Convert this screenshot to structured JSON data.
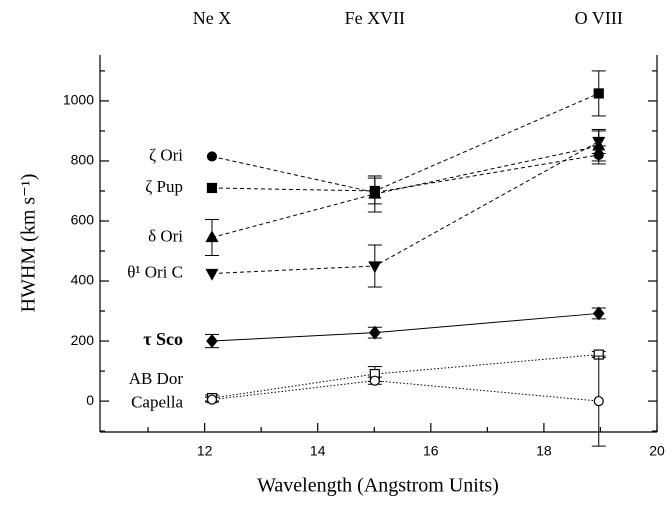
{
  "chart_data": {
    "type": "line",
    "xlabel": "Wavelength (Angstrom Units)",
    "ylabel": "HWHM (km s⁻¹)",
    "top_labels": [
      {
        "text": "Ne X",
        "x": 12.13
      },
      {
        "text": "Fe XVII",
        "x": 15.01
      },
      {
        "text": "O VIII",
        "x": 18.97
      }
    ],
    "x": [
      12.13,
      15.01,
      18.97
    ],
    "xlim": [
      10.15,
      20
    ],
    "xticks": [
      12,
      14,
      16,
      18,
      20
    ],
    "xminorticks": [
      11,
      13,
      15,
      17,
      19
    ],
    "ylim": [
      -103,
      1153
    ],
    "yticks": [
      0,
      200,
      400,
      600,
      800,
      1000
    ],
    "yminorticks": [
      -100,
      100,
      300,
      500,
      700,
      900,
      1100
    ],
    "grid": false,
    "series": [
      {
        "name": "ζ Ori",
        "color": "#000",
        "marker": "circle",
        "filled": true,
        "linestyle": "dashed",
        "values": [
          815,
          695,
          820
        ],
        "errors": [
          null,
          null,
          30
        ]
      },
      {
        "name": "ζ Pup",
        "color": "#000",
        "marker": "square",
        "filled": true,
        "linestyle": "dashed",
        "values": [
          710,
          700,
          1025
        ],
        "errors": [
          null,
          43,
          75
        ]
      },
      {
        "name": "δ Ori",
        "color": "#000",
        "marker": "triangle-up",
        "filled": true,
        "linestyle": "dashed",
        "values": [
          545,
          690,
          850
        ],
        "errors": [
          60,
          60,
          50
        ]
      },
      {
        "name": "θ¹ Ori C",
        "color": "#000",
        "marker": "triangle-down",
        "filled": true,
        "linestyle": "dashed",
        "values": [
          425,
          450,
          865
        ],
        "errors": [
          null,
          70,
          40
        ]
      },
      {
        "name": "τ Sco",
        "color": "#000",
        "marker": "diamond",
        "filled": true,
        "linestyle": "solid",
        "bold": true,
        "values": [
          200,
          228,
          292
        ],
        "errors": [
          22,
          18,
          18
        ]
      },
      {
        "name": "AB Dor",
        "color": "#000",
        "marker": "square",
        "filled": false,
        "linestyle": "dotted",
        "values": [
          10,
          90,
          155
        ],
        "errors": [
          10,
          25,
          10
        ]
      },
      {
        "name": "Capella",
        "color": "#000",
        "marker": "circle",
        "filled": false,
        "linestyle": "dotted",
        "values": [
          5,
          68,
          0
        ],
        "errors": [
          8,
          12,
          150
        ]
      }
    ]
  }
}
